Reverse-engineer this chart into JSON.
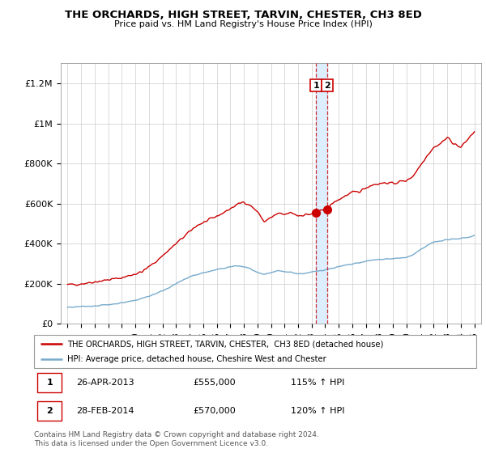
{
  "title": "THE ORCHARDS, HIGH STREET, TARVIN, CHESTER, CH3 8ED",
  "subtitle": "Price paid vs. HM Land Registry's House Price Index (HPI)",
  "footer": "Contains HM Land Registry data © Crown copyright and database right 2024.\nThis data is licensed under the Open Government Licence v3.0.",
  "legend_line1": "THE ORCHARDS, HIGH STREET, TARVIN, CHESTER,  CH3 8ED (detached house)",
  "legend_line2": "HPI: Average price, detached house, Cheshire West and Chester",
  "transaction_labels": [
    {
      "num": "1",
      "date": "26-APR-2013",
      "price": "£555,000",
      "hpi": "115% ↑ HPI"
    },
    {
      "num": "2",
      "date": "28-FEB-2014",
      "price": "£570,000",
      "hpi": "120% ↑ HPI"
    }
  ],
  "red_color": "#cc0000",
  "blue_color": "#77aacc",
  "shade_color": "#ddeeff",
  "vline_color": "#cc0000",
  "dot1_x": 2013.32,
  "dot2_x": 2014.16,
  "dot1_y": 555000,
  "dot2_y": 570000,
  "vline_x1": 2013.32,
  "vline_x2": 2014.16,
  "ylim": [
    0,
    1300000
  ],
  "xlim": [
    1994.5,
    2025.5
  ],
  "yticks": [
    0,
    200000,
    400000,
    600000,
    800000,
    1000000,
    1200000
  ],
  "ytick_labels": [
    "£0",
    "£200K",
    "£400K",
    "£600K",
    "£800K",
    "£1M",
    "£1.2M"
  ],
  "red_keypoints": [
    [
      1995.0,
      195000
    ],
    [
      1996.0,
      200000
    ],
    [
      1997.5,
      215000
    ],
    [
      1999.0,
      230000
    ],
    [
      2000.5,
      260000
    ],
    [
      2001.5,
      310000
    ],
    [
      2002.5,
      370000
    ],
    [
      2003.5,
      430000
    ],
    [
      2004.5,
      490000
    ],
    [
      2005.5,
      520000
    ],
    [
      2006.5,
      555000
    ],
    [
      2007.5,
      595000
    ],
    [
      2008.0,
      610000
    ],
    [
      2008.5,
      590000
    ],
    [
      2009.0,
      560000
    ],
    [
      2009.5,
      510000
    ],
    [
      2010.0,
      530000
    ],
    [
      2010.5,
      550000
    ],
    [
      2011.0,
      545000
    ],
    [
      2011.5,
      555000
    ],
    [
      2012.0,
      540000
    ],
    [
      2012.5,
      545000
    ],
    [
      2013.0,
      548000
    ],
    [
      2013.32,
      555000
    ],
    [
      2013.5,
      560000
    ],
    [
      2014.16,
      570000
    ],
    [
      2014.5,
      600000
    ],
    [
      2015.0,
      620000
    ],
    [
      2015.5,
      640000
    ],
    [
      2016.0,
      655000
    ],
    [
      2016.5,
      660000
    ],
    [
      2017.0,
      680000
    ],
    [
      2017.5,
      695000
    ],
    [
      2018.0,
      700000
    ],
    [
      2018.5,
      705000
    ],
    [
      2019.0,
      700000
    ],
    [
      2019.5,
      710000
    ],
    [
      2020.0,
      715000
    ],
    [
      2020.5,
      740000
    ],
    [
      2021.0,
      790000
    ],
    [
      2021.5,
      840000
    ],
    [
      2022.0,
      880000
    ],
    [
      2022.5,
      900000
    ],
    [
      2023.0,
      930000
    ],
    [
      2023.5,
      900000
    ],
    [
      2024.0,
      880000
    ],
    [
      2024.5,
      920000
    ],
    [
      2025.0,
      960000
    ]
  ],
  "blue_keypoints": [
    [
      1995.0,
      82000
    ],
    [
      1996.0,
      86000
    ],
    [
      1997.0,
      90000
    ],
    [
      1998.0,
      96000
    ],
    [
      1999.0,
      105000
    ],
    [
      2000.0,
      118000
    ],
    [
      2001.0,
      138000
    ],
    [
      2002.0,
      165000
    ],
    [
      2003.0,
      200000
    ],
    [
      2004.0,
      235000
    ],
    [
      2005.0,
      255000
    ],
    [
      2006.0,
      270000
    ],
    [
      2007.0,
      285000
    ],
    [
      2007.5,
      290000
    ],
    [
      2008.0,
      285000
    ],
    [
      2008.5,
      275000
    ],
    [
      2009.0,
      255000
    ],
    [
      2009.5,
      245000
    ],
    [
      2010.0,
      255000
    ],
    [
      2010.5,
      265000
    ],
    [
      2011.0,
      260000
    ],
    [
      2011.5,
      258000
    ],
    [
      2012.0,
      250000
    ],
    [
      2012.5,
      252000
    ],
    [
      2013.0,
      258000
    ],
    [
      2013.32,
      262000
    ],
    [
      2013.5,
      265000
    ],
    [
      2014.16,
      272000
    ],
    [
      2014.5,
      278000
    ],
    [
      2015.0,
      285000
    ],
    [
      2015.5,
      292000
    ],
    [
      2016.0,
      298000
    ],
    [
      2016.5,
      305000
    ],
    [
      2017.0,
      312000
    ],
    [
      2017.5,
      318000
    ],
    [
      2018.0,
      322000
    ],
    [
      2018.5,
      325000
    ],
    [
      2019.0,
      325000
    ],
    [
      2019.5,
      328000
    ],
    [
      2020.0,
      332000
    ],
    [
      2020.5,
      345000
    ],
    [
      2021.0,
      368000
    ],
    [
      2021.5,
      390000
    ],
    [
      2022.0,
      408000
    ],
    [
      2022.5,
      415000
    ],
    [
      2023.0,
      420000
    ],
    [
      2023.5,
      422000
    ],
    [
      2024.0,
      428000
    ],
    [
      2024.5,
      432000
    ],
    [
      2025.0,
      440000
    ]
  ]
}
